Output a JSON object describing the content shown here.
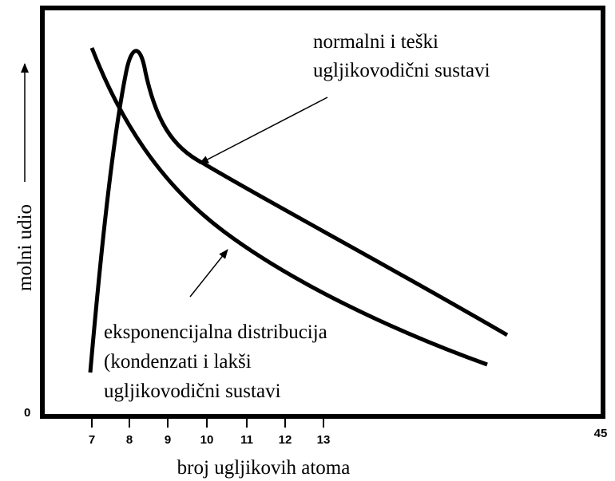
{
  "axes": {
    "y_label": "molni udio",
    "y_origin": "0",
    "x_label": "broj ugljikovih atoma",
    "x_ticks": [
      7,
      8,
      9,
      10,
      11,
      12,
      13,
      45
    ]
  },
  "annotations": [
    {
      "lines": [
        "normalni i teški",
        "ugljikovodični sustavi"
      ]
    },
    {
      "lines": [
        "eksponencijalna distribucija",
        "(kondenzati i lakši",
        "ugljikovodični sustavi"
      ]
    }
  ]
}
